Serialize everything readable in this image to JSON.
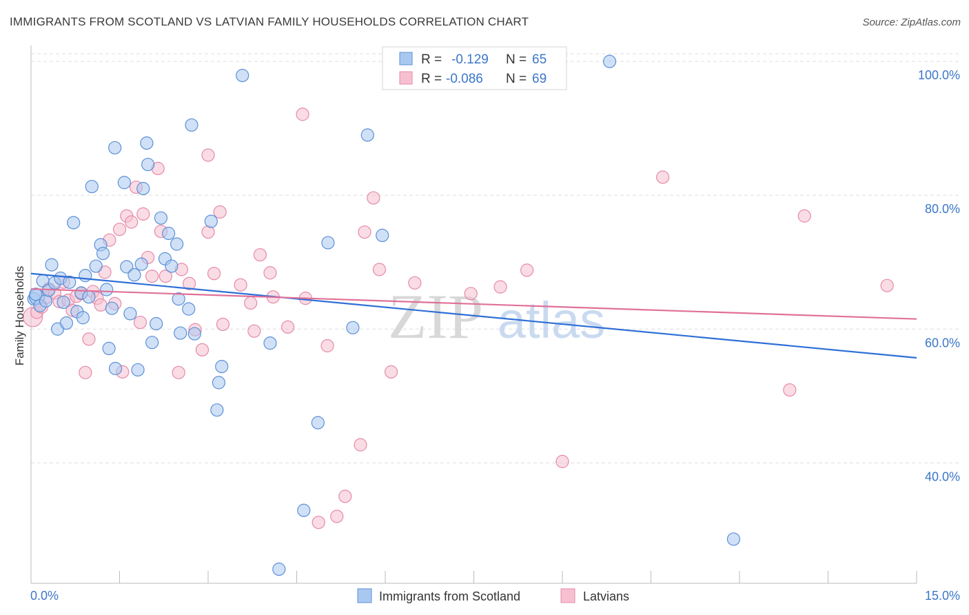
{
  "title": "IMMIGRANTS FROM SCOTLAND VS LATVIAN FAMILY HOUSEHOLDS CORRELATION CHART",
  "source": "Source: ZipAtlas.com",
  "watermark": {
    "zip": "ZIP",
    "atlas": "atlas"
  },
  "colors": {
    "blue_fill": "#a9c8f0",
    "blue_stroke": "#5b8fd6",
    "blue_line": "#2e6fd6",
    "pink_fill": "#f6c0d0",
    "pink_stroke": "#e58aa8",
    "pink_line": "#e07098",
    "tick_label": "#3b76c8",
    "grid": "#dddddd"
  },
  "legend": {
    "series": [
      {
        "r_label": "R =",
        "r_value": "-0.129",
        "n_label": "N =",
        "n_value": "65"
      },
      {
        "r_label": "R =",
        "r_value": "-0.086",
        "n_label": "N =",
        "n_value": "69"
      }
    ]
  },
  "bottom_legend": [
    "Immigrants from Scotland",
    "Latvians"
  ],
  "chart_data": {
    "type": "scatter",
    "title": "IMMIGRANTS FROM SCOTLAND VS LATVIAN FAMILY HOUSEHOLDS CORRELATION CHART",
    "xlabel": "",
    "ylabel": "Family Households",
    "xlim": [
      0,
      15
    ],
    "ylim": [
      22,
      103
    ],
    "x_tick_labels": [
      "0.0%",
      "15.0%"
    ],
    "y_ticks": [
      40,
      60,
      80,
      100
    ],
    "y_tick_labels": [
      "40.0%",
      "60.0%",
      "80.0%",
      "100.0%"
    ],
    "grid": true,
    "series": [
      {
        "name": "Immigrants from Scotland",
        "r": -0.129,
        "n": 65,
        "trend": {
          "x": [
            0,
            15
          ],
          "y": [
            68.3,
            55.7
          ]
        },
        "points": [
          {
            "x": 0.05,
            "y": 64.5,
            "s": 1
          },
          {
            "x": 0.1,
            "y": 64.8,
            "s": 2
          },
          {
            "x": 0.15,
            "y": 63.5,
            "s": 1
          },
          {
            "x": 0.2,
            "y": 67.2,
            "s": 1
          },
          {
            "x": 0.25,
            "y": 64.2,
            "s": 1
          },
          {
            "x": 0.3,
            "y": 65.8,
            "s": 1
          },
          {
            "x": 0.35,
            "y": 69.6,
            "s": 1
          },
          {
            "x": 0.4,
            "y": 66.9,
            "s": 1
          },
          {
            "x": 0.45,
            "y": 60.0,
            "s": 1
          },
          {
            "x": 0.5,
            "y": 67.6,
            "s": 1
          },
          {
            "x": 0.55,
            "y": 64.0,
            "s": 1
          },
          {
            "x": 0.6,
            "y": 60.9,
            "s": 1
          },
          {
            "x": 0.65,
            "y": 67.0,
            "s": 1
          },
          {
            "x": 0.72,
            "y": 75.9,
            "s": 1
          },
          {
            "x": 0.78,
            "y": 62.6,
            "s": 1
          },
          {
            "x": 0.85,
            "y": 65.4,
            "s": 1
          },
          {
            "x": 0.88,
            "y": 61.7,
            "s": 1
          },
          {
            "x": 0.92,
            "y": 68.0,
            "s": 1
          },
          {
            "x": 0.98,
            "y": 64.8,
            "s": 1
          },
          {
            "x": 1.03,
            "y": 81.3,
            "s": 1
          },
          {
            "x": 1.1,
            "y": 69.4,
            "s": 1
          },
          {
            "x": 1.18,
            "y": 72.6,
            "s": 1
          },
          {
            "x": 1.22,
            "y": 71.3,
            "s": 1
          },
          {
            "x": 1.28,
            "y": 65.9,
            "s": 1
          },
          {
            "x": 1.32,
            "y": 57.1,
            "s": 1
          },
          {
            "x": 1.37,
            "y": 63.1,
            "s": 1
          },
          {
            "x": 1.42,
            "y": 87.1,
            "s": 1
          },
          {
            "x": 1.43,
            "y": 54.1,
            "s": 1
          },
          {
            "x": 1.58,
            "y": 81.9,
            "s": 1
          },
          {
            "x": 1.62,
            "y": 69.3,
            "s": 1
          },
          {
            "x": 1.68,
            "y": 62.3,
            "s": 1
          },
          {
            "x": 1.75,
            "y": 68.1,
            "s": 1
          },
          {
            "x": 1.81,
            "y": 53.9,
            "s": 1
          },
          {
            "x": 1.87,
            "y": 69.7,
            "s": 1
          },
          {
            "x": 1.9,
            "y": 81.0,
            "s": 1
          },
          {
            "x": 1.96,
            "y": 87.8,
            "s": 1
          },
          {
            "x": 1.98,
            "y": 84.6,
            "s": 1
          },
          {
            "x": 2.05,
            "y": 58.0,
            "s": 1
          },
          {
            "x": 2.12,
            "y": 60.8,
            "s": 1
          },
          {
            "x": 2.2,
            "y": 76.6,
            "s": 1
          },
          {
            "x": 2.27,
            "y": 70.5,
            "s": 1
          },
          {
            "x": 2.33,
            "y": 74.3,
            "s": 1
          },
          {
            "x": 2.38,
            "y": 69.4,
            "s": 1
          },
          {
            "x": 2.47,
            "y": 72.7,
            "s": 1
          },
          {
            "x": 2.5,
            "y": 64.5,
            "s": 1
          },
          {
            "x": 2.53,
            "y": 59.4,
            "s": 1
          },
          {
            "x": 2.67,
            "y": 63.0,
            "s": 1
          },
          {
            "x": 2.72,
            "y": 90.5,
            "s": 1
          },
          {
            "x": 2.77,
            "y": 59.3,
            "s": 1
          },
          {
            "x": 3.05,
            "y": 76.1,
            "s": 1
          },
          {
            "x": 3.15,
            "y": 47.9,
            "s": 1
          },
          {
            "x": 3.18,
            "y": 52.0,
            "s": 1
          },
          {
            "x": 3.23,
            "y": 54.4,
            "s": 1
          },
          {
            "x": 3.58,
            "y": 97.9,
            "s": 1
          },
          {
            "x": 4.05,
            "y": 57.9,
            "s": 1
          },
          {
            "x": 4.2,
            "y": 24.1,
            "s": 1
          },
          {
            "x": 4.62,
            "y": 32.9,
            "s": 1
          },
          {
            "x": 4.86,
            "y": 46.0,
            "s": 1
          },
          {
            "x": 5.03,
            "y": 72.9,
            "s": 1
          },
          {
            "x": 5.45,
            "y": 60.2,
            "s": 1
          },
          {
            "x": 5.7,
            "y": 89.0,
            "s": 1
          },
          {
            "x": 5.95,
            "y": 74.0,
            "s": 1
          },
          {
            "x": 9.8,
            "y": 100.0,
            "s": 1
          },
          {
            "x": 11.9,
            "y": 28.6,
            "s": 1
          },
          {
            "x": 0.08,
            "y": 65.2,
            "s": 1
          }
        ]
      },
      {
        "name": "Latvians",
        "r": -0.086,
        "n": 69,
        "trend": {
          "x": [
            0,
            15
          ],
          "y": [
            66.0,
            61.5
          ]
        },
        "points": [
          {
            "x": 0.03,
            "y": 61.8,
            "s": 3
          },
          {
            "x": 0.1,
            "y": 62.5,
            "s": 1
          },
          {
            "x": 0.18,
            "y": 63.3,
            "s": 1
          },
          {
            "x": 0.25,
            "y": 64.7,
            "s": 1
          },
          {
            "x": 0.3,
            "y": 66.0,
            "s": 1
          },
          {
            "x": 0.4,
            "y": 65.4,
            "s": 1
          },
          {
            "x": 0.48,
            "y": 64.1,
            "s": 1
          },
          {
            "x": 0.55,
            "y": 67.0,
            "s": 1
          },
          {
            "x": 0.63,
            "y": 64.3,
            "s": 1
          },
          {
            "x": 0.7,
            "y": 62.8,
            "s": 1
          },
          {
            "x": 0.77,
            "y": 64.9,
            "s": 1
          },
          {
            "x": 0.85,
            "y": 65.3,
            "s": 1
          },
          {
            "x": 0.92,
            "y": 53.5,
            "s": 1
          },
          {
            "x": 0.98,
            "y": 58.5,
            "s": 1
          },
          {
            "x": 1.05,
            "y": 65.6,
            "s": 1
          },
          {
            "x": 1.12,
            "y": 64.6,
            "s": 1
          },
          {
            "x": 1.18,
            "y": 63.6,
            "s": 1
          },
          {
            "x": 1.25,
            "y": 68.5,
            "s": 1
          },
          {
            "x": 1.33,
            "y": 73.3,
            "s": 1
          },
          {
            "x": 1.42,
            "y": 63.8,
            "s": 1
          },
          {
            "x": 1.5,
            "y": 74.9,
            "s": 1
          },
          {
            "x": 1.55,
            "y": 53.6,
            "s": 1
          },
          {
            "x": 1.62,
            "y": 76.9,
            "s": 1
          },
          {
            "x": 1.7,
            "y": 76.0,
            "s": 1
          },
          {
            "x": 1.78,
            "y": 81.2,
            "s": 1
          },
          {
            "x": 1.85,
            "y": 61.0,
            "s": 1
          },
          {
            "x": 1.9,
            "y": 77.2,
            "s": 1
          },
          {
            "x": 1.98,
            "y": 70.7,
            "s": 1
          },
          {
            "x": 2.05,
            "y": 67.9,
            "s": 1
          },
          {
            "x": 2.15,
            "y": 84.0,
            "s": 1
          },
          {
            "x": 2.2,
            "y": 74.6,
            "s": 1
          },
          {
            "x": 2.28,
            "y": 67.9,
            "s": 1
          },
          {
            "x": 2.5,
            "y": 53.5,
            "s": 1
          },
          {
            "x": 2.55,
            "y": 68.9,
            "s": 1
          },
          {
            "x": 2.68,
            "y": 66.8,
            "s": 1
          },
          {
            "x": 2.78,
            "y": 59.9,
            "s": 1
          },
          {
            "x": 2.9,
            "y": 56.9,
            "s": 1
          },
          {
            "x": 3.0,
            "y": 86.0,
            "s": 1
          },
          {
            "x": 3.0,
            "y": 74.5,
            "s": 1
          },
          {
            "x": 3.1,
            "y": 68.3,
            "s": 1
          },
          {
            "x": 3.2,
            "y": 77.5,
            "s": 1
          },
          {
            "x": 3.25,
            "y": 60.7,
            "s": 1
          },
          {
            "x": 3.55,
            "y": 66.6,
            "s": 1
          },
          {
            "x": 3.72,
            "y": 63.9,
            "s": 1
          },
          {
            "x": 3.78,
            "y": 59.7,
            "s": 1
          },
          {
            "x": 3.88,
            "y": 71.1,
            "s": 1
          },
          {
            "x": 4.05,
            "y": 68.4,
            "s": 1
          },
          {
            "x": 4.1,
            "y": 64.8,
            "s": 1
          },
          {
            "x": 4.35,
            "y": 60.3,
            "s": 1
          },
          {
            "x": 4.65,
            "y": 64.6,
            "s": 1
          },
          {
            "x": 4.6,
            "y": 92.1,
            "s": 1
          },
          {
            "x": 4.87,
            "y": 31.1,
            "s": 1
          },
          {
            "x": 5.02,
            "y": 57.5,
            "s": 1
          },
          {
            "x": 5.18,
            "y": 32.0,
            "s": 1
          },
          {
            "x": 5.32,
            "y": 35.0,
            "s": 1
          },
          {
            "x": 5.58,
            "y": 42.7,
            "s": 1
          },
          {
            "x": 5.65,
            "y": 74.5,
            "s": 1
          },
          {
            "x": 5.8,
            "y": 79.6,
            "s": 1
          },
          {
            "x": 5.9,
            "y": 68.9,
            "s": 1
          },
          {
            "x": 6.1,
            "y": 53.6,
            "s": 1
          },
          {
            "x": 6.5,
            "y": 66.9,
            "s": 1
          },
          {
            "x": 7.45,
            "y": 65.3,
            "s": 1
          },
          {
            "x": 7.95,
            "y": 66.3,
            "s": 1
          },
          {
            "x": 8.4,
            "y": 68.8,
            "s": 1
          },
          {
            "x": 9.0,
            "y": 40.2,
            "s": 1
          },
          {
            "x": 10.7,
            "y": 82.7,
            "s": 1
          },
          {
            "x": 12.85,
            "y": 50.9,
            "s": 1
          },
          {
            "x": 13.1,
            "y": 76.9,
            "s": 1
          },
          {
            "x": 14.5,
            "y": 66.5,
            "s": 1
          }
        ]
      }
    ]
  }
}
